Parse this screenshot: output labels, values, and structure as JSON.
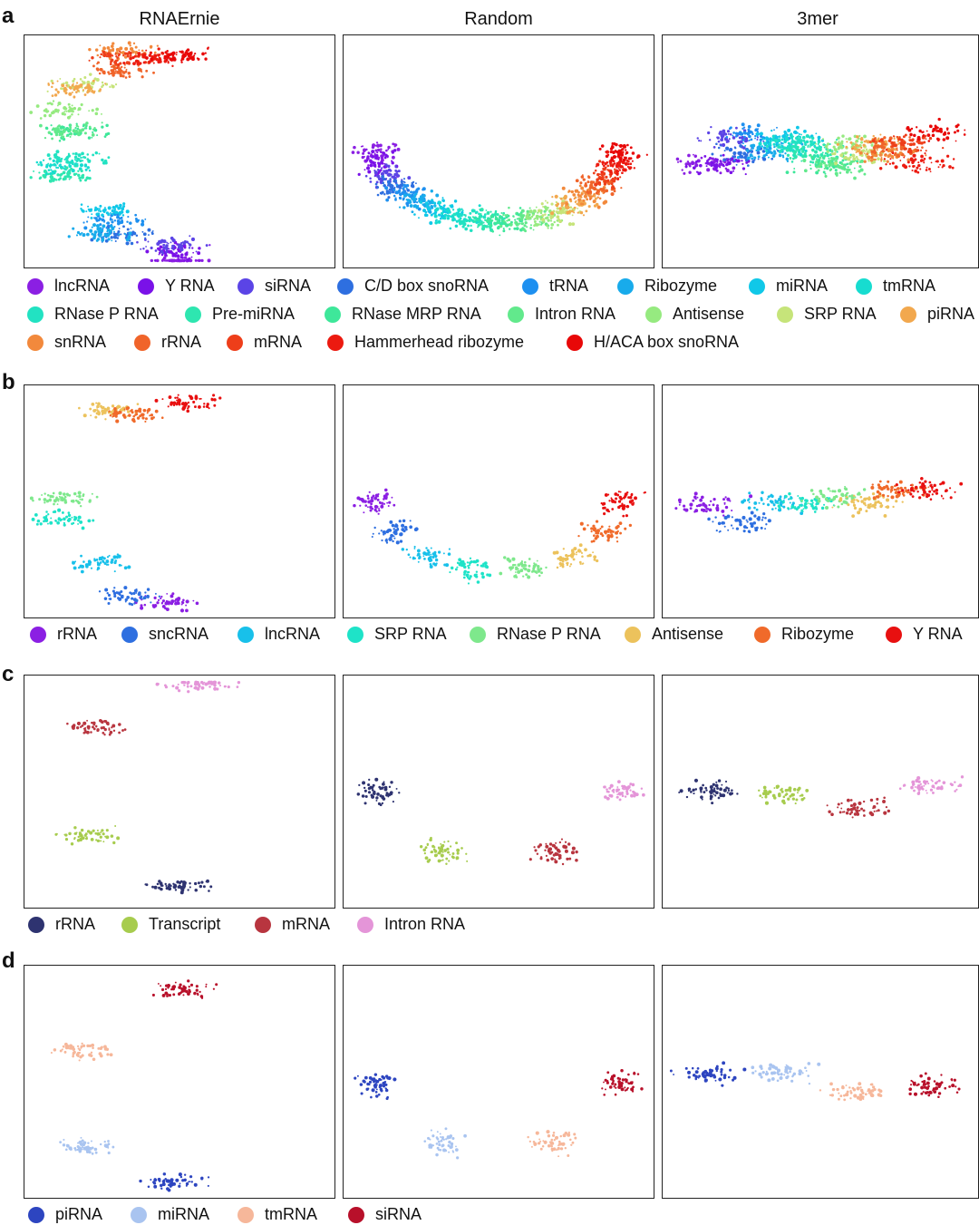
{
  "column_titles": [
    "RNAErnie",
    "Random",
    "3mer"
  ],
  "chart_data": [
    {
      "type": "scatter",
      "panel_label": "a",
      "legend": [
        {
          "name": "lncRNA",
          "color": "#8B1FE3"
        },
        {
          "name": "Y RNA",
          "color": "#7A12E8"
        },
        {
          "name": "siRNA",
          "color": "#5B44E6"
        },
        {
          "name": "C/D box snoRNA",
          "color": "#2E6FE0"
        },
        {
          "name": "tRNA",
          "color": "#1E90F0"
        },
        {
          "name": "Ribozyme",
          "color": "#18ABEB"
        },
        {
          "name": "miRNA",
          "color": "#10C8E8"
        },
        {
          "name": "tmRNA",
          "color": "#17DCD0"
        },
        {
          "name": "RNase P RNA",
          "color": "#22E2C2"
        },
        {
          "name": "Pre-miRNA",
          "color": "#2EE6B0"
        },
        {
          "name": "RNase MRP RNA",
          "color": "#3EE79A"
        },
        {
          "name": "Intron RNA",
          "color": "#62E98C"
        },
        {
          "name": "Antisense",
          "color": "#96EA80"
        },
        {
          "name": "SRP RNA",
          "color": "#C6E47A"
        },
        {
          "name": "piRNA",
          "color": "#F2A84E"
        },
        {
          "name": "snRNA",
          "color": "#F2893C"
        },
        {
          "name": "rRNA",
          "color": "#F0642A"
        },
        {
          "name": "mRNA",
          "color": "#EE3E1A"
        },
        {
          "name": "Hammerhead ribozyme",
          "color": "#EC1A10"
        },
        {
          "name": "H/ACA box snoRNA",
          "color": "#E80808"
        }
      ]
    },
    {
      "type": "scatter",
      "panel_label": "b",
      "legend": [
        {
          "name": "rRNA",
          "color": "#8B1FE3"
        },
        {
          "name": "sncRNA",
          "color": "#2E6FE0"
        },
        {
          "name": "lncRNA",
          "color": "#18C0EA"
        },
        {
          "name": "SRP RNA",
          "color": "#1EE3C8"
        },
        {
          "name": "RNase P RNA",
          "color": "#7EE88C"
        },
        {
          "name": "Antisense",
          "color": "#ECC25C"
        },
        {
          "name": "Ribozyme",
          "color": "#F06A2A"
        },
        {
          "name": "Y RNA",
          "color": "#E81010"
        }
      ]
    },
    {
      "type": "scatter",
      "panel_label": "c",
      "legend": [
        {
          "name": "rRNA",
          "color": "#2E3370"
        },
        {
          "name": "Transcript",
          "color": "#A7CC4E"
        },
        {
          "name": "mRNA",
          "color": "#B8353F"
        },
        {
          "name": "Intron RNA",
          "color": "#E495D8"
        }
      ]
    },
    {
      "type": "scatter",
      "panel_label": "d",
      "legend": [
        {
          "name": "piRNA",
          "color": "#2D45C0"
        },
        {
          "name": "miRNA",
          "color": "#A9C4F0"
        },
        {
          "name": "tmRNA",
          "color": "#F6B79A"
        },
        {
          "name": "siRNA",
          "color": "#B8102A"
        }
      ]
    }
  ]
}
